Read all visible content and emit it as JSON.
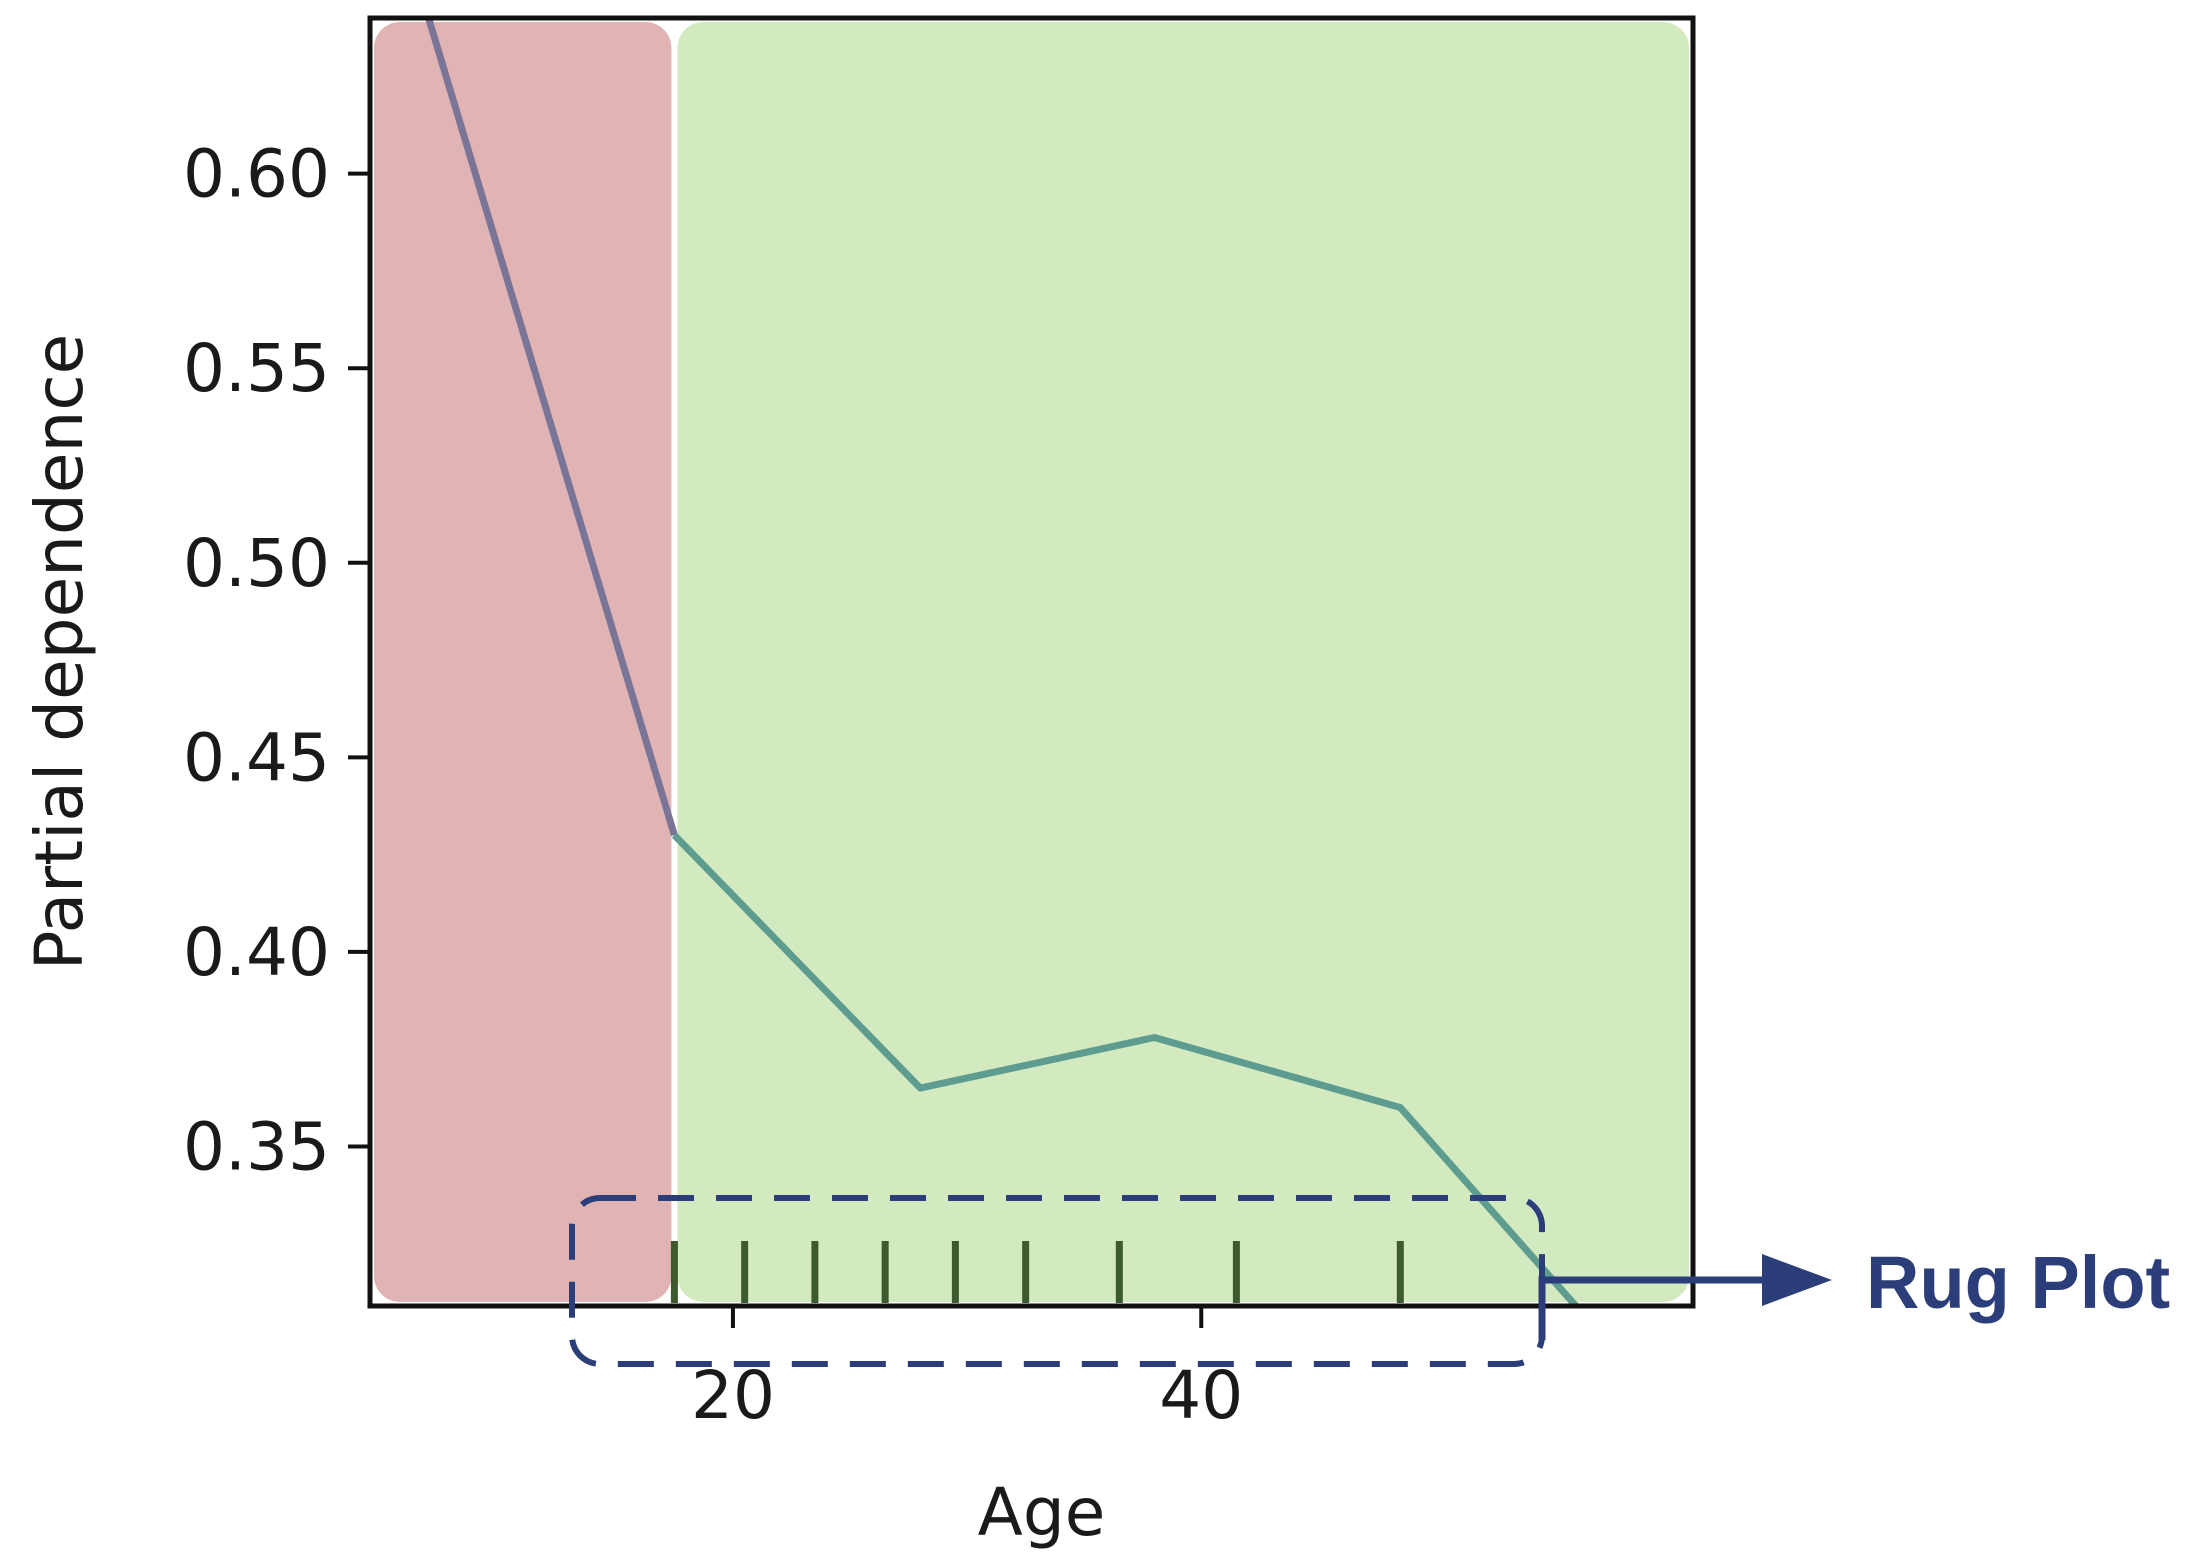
{
  "chart_data": {
    "type": "line",
    "xlabel": "Age",
    "ylabel": "Partial dependence",
    "xlim": [
      4.5,
      61
    ],
    "ylim": [
      0.309,
      0.64
    ],
    "xticks": [
      20,
      40
    ],
    "xtick_labels": [
      "20",
      "40"
    ],
    "yticks": [
      0.35,
      0.4,
      0.45,
      0.5,
      0.55,
      0.6
    ],
    "ytick_labels": [
      "0.35",
      "0.40",
      "0.45",
      "0.50",
      "0.55",
      "0.60"
    ],
    "grid": false,
    "series": [
      {
        "x": [
          7,
          17.5,
          28,
          38,
          48.5,
          56
        ],
        "y": [
          0.64,
          0.43,
          0.365,
          0.378,
          0.36,
          0.309
        ]
      }
    ],
    "rug_x": [
      17.5,
      20.5,
      23.5,
      26.5,
      29.5,
      32.5,
      36.5,
      41.5,
      48.5
    ],
    "regions": [
      {
        "from": 4.5,
        "to": 17.5,
        "color": "#e0b4b4"
      },
      {
        "from": 17.5,
        "to": 61,
        "color": "#d3eac0"
      }
    ],
    "annotation": {
      "label": "Rug Plot",
      "color": "#2c3e7a"
    }
  },
  "colors": {
    "line": "#5e9c90",
    "line_over_red": "#7a7597",
    "rug": "#3d5a2f",
    "annotation": "#2c3e7a"
  }
}
